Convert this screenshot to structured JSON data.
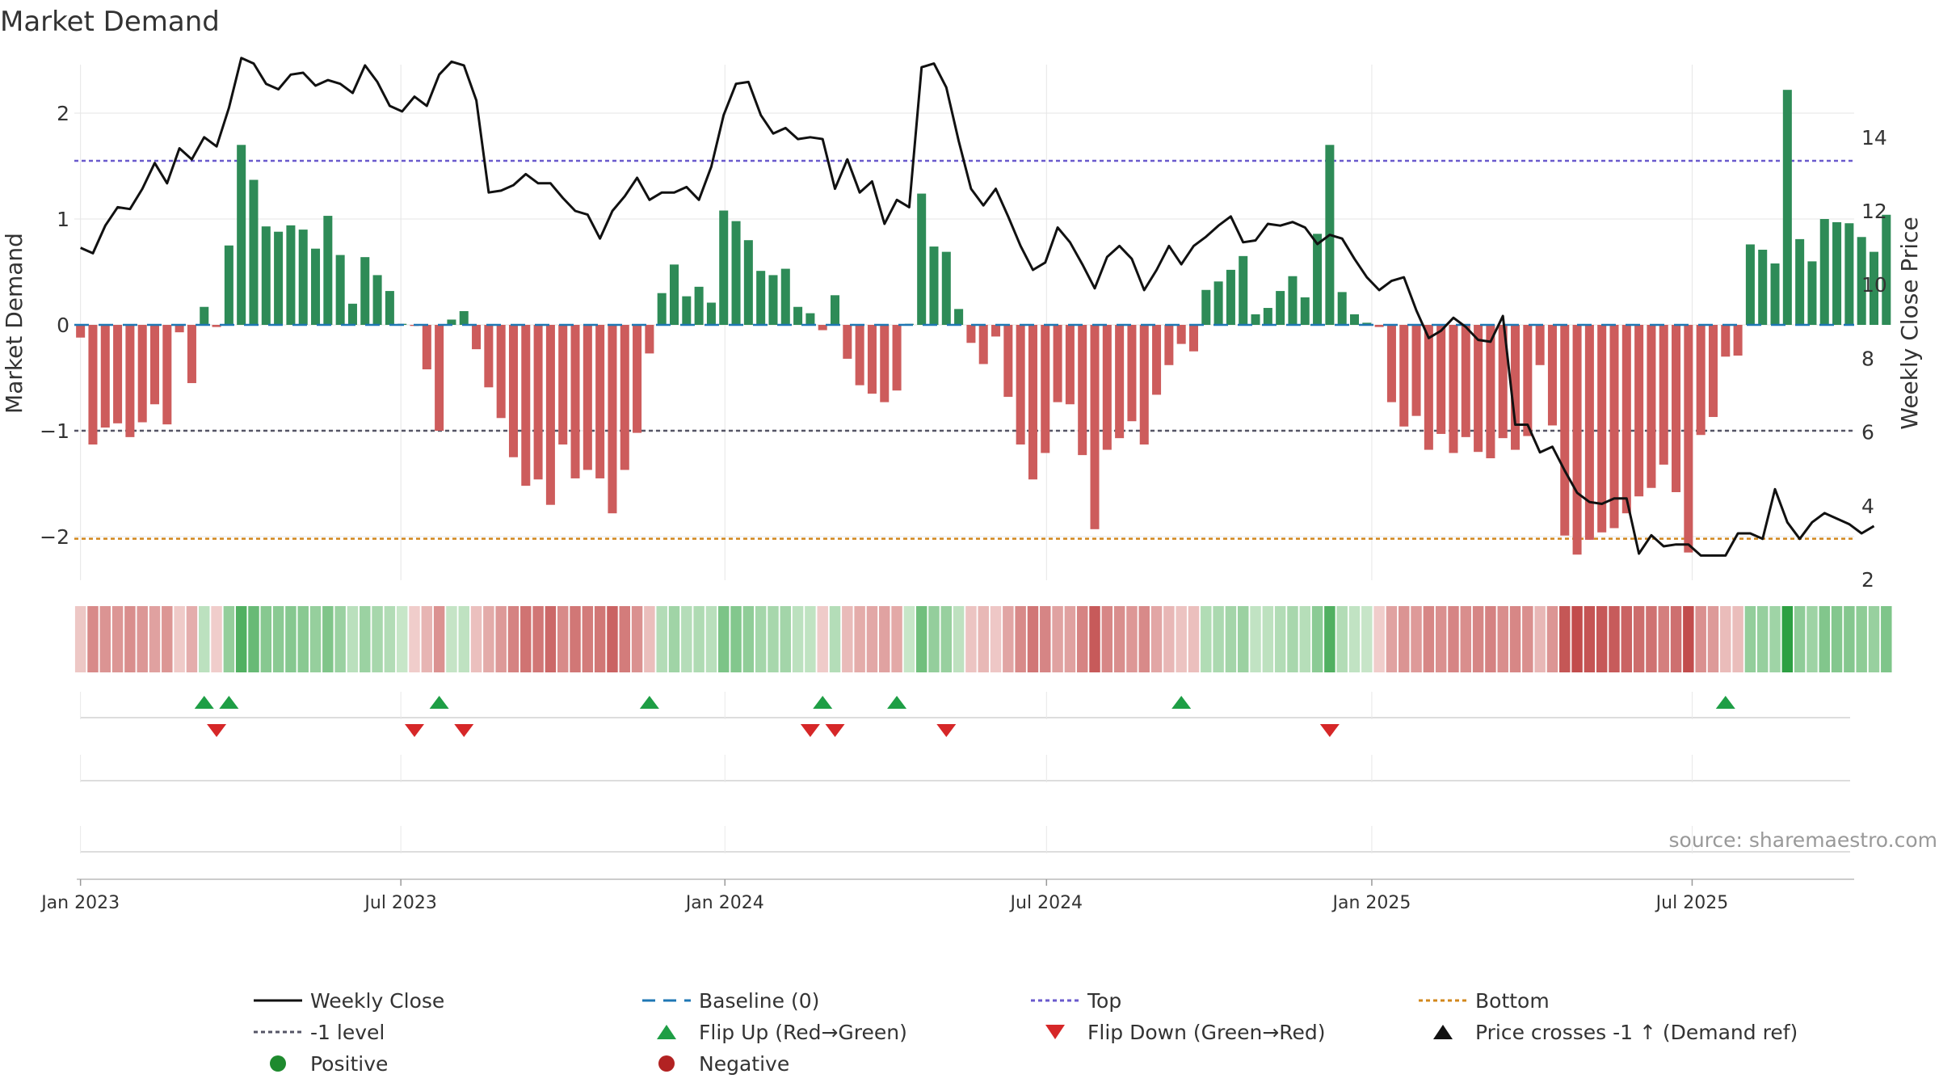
{
  "colors": {
    "positive": "#2e8b57",
    "negative": "#cd5c5c",
    "close": "#111111",
    "baseline": "#1f77b4",
    "top": "#6a5acd",
    "minus1": "#555566",
    "bottom": "#d2871c",
    "flip_up": "#1e9e45",
    "flip_down": "#d62728",
    "grid": "#e6e6e6",
    "source": "#999999"
  },
  "chart_data": {
    "type": "bar",
    "title": "Market Demand",
    "ylabel": "Market Demand",
    "ylabel_right": "Weekly Close Price",
    "ylim": [
      -2.4,
      2.45
    ],
    "ylim_right": [
      2,
      15.6
    ],
    "yticks": [
      2,
      1,
      0,
      -1,
      -2
    ],
    "ytick_labels": [
      "2",
      "1",
      "0",
      "−1",
      "−2"
    ],
    "yticks_right": [
      2,
      4,
      6,
      8,
      10,
      12,
      14
    ],
    "ytick_labels_right": [
      "2",
      "4",
      "6",
      "8",
      "10",
      "12",
      "14"
    ],
    "x_start_week": -0.5,
    "x_end_week": 143.4,
    "x_ticks": [
      {
        "label": "Jan 2023",
        "week": 0
      },
      {
        "label": "Jul 2023",
        "week": 25.9
      },
      {
        "label": "Jan 2024",
        "week": 52.1
      },
      {
        "label": "Jul 2024",
        "week": 78.1
      },
      {
        "label": "Jan 2025",
        "week": 104.4
      },
      {
        "label": "Jul 2025",
        "week": 130.3
      }
    ],
    "reference_lines": {
      "baseline": 0,
      "top": 1.55,
      "minus1": -1,
      "bottom": -2.02
    },
    "demand": [
      -0.12,
      -1.13,
      -0.97,
      -0.93,
      -1.06,
      -0.92,
      -0.75,
      -0.94,
      -0.07,
      -0.55,
      0.17,
      -0.02,
      0.75,
      1.7,
      1.37,
      0.93,
      0.88,
      0.94,
      0.9,
      0.72,
      1.03,
      0.66,
      0.2,
      0.64,
      0.47,
      0.32,
      0.01,
      -0.01,
      -0.42,
      -1.0,
      0.05,
      0.13,
      -0.23,
      -0.59,
      -0.88,
      -1.25,
      -1.52,
      -1.46,
      -1.7,
      -1.13,
      -1.45,
      -1.37,
      -1.45,
      -1.78,
      -1.37,
      -1.02,
      -0.27,
      0.3,
      0.57,
      0.27,
      0.36,
      0.21,
      1.08,
      0.98,
      0.8,
      0.51,
      0.47,
      0.53,
      0.17,
      0.11,
      -0.05,
      0.28,
      -0.32,
      -0.57,
      -0.65,
      -0.73,
      -0.62,
      0.01,
      1.24,
      0.74,
      0.69,
      0.15,
      -0.17,
      -0.37,
      -0.11,
      -0.68,
      -1.13,
      -1.46,
      -1.21,
      -0.73,
      -0.75,
      -1.23,
      -1.93,
      -1.18,
      -1.07,
      -0.91,
      -1.13,
      -0.66,
      -0.38,
      -0.18,
      -0.25,
      0.33,
      0.41,
      0.52,
      0.65,
      0.1,
      0.16,
      0.32,
      0.46,
      0.26,
      0.86,
      1.7,
      0.31,
      0.1,
      0.02,
      -0.02,
      -0.73,
      -0.96,
      -0.86,
      -1.18,
      -1.03,
      -1.21,
      -1.06,
      -1.2,
      -1.26,
      -1.07,
      -1.18,
      -1.05,
      -0.38,
      -0.95,
      -1.99,
      -2.17,
      -2.03,
      -1.96,
      -1.92,
      -1.78,
      -1.62,
      -1.54,
      -1.32,
      -1.58,
      -2.15,
      -1.04,
      -0.87,
      -0.3,
      -0.29,
      0.76,
      0.71,
      0.58,
      2.22,
      0.81,
      0.6,
      1.0,
      0.97,
      0.96,
      0.83,
      0.69,
      1.04
    ],
    "weekly_close": [
      11.0,
      10.85,
      11.6,
      12.1,
      12.05,
      12.6,
      13.3,
      12.75,
      13.7,
      13.4,
      14.0,
      13.75,
      14.8,
      16.15,
      16.0,
      15.45,
      15.3,
      15.7,
      15.75,
      15.4,
      15.55,
      15.45,
      15.2,
      15.95,
      15.5,
      14.85,
      14.7,
      15.1,
      14.85,
      15.7,
      16.05,
      15.95,
      15.0,
      12.5,
      12.55,
      12.7,
      13.0,
      12.75,
      12.75,
      12.35,
      12.0,
      11.9,
      11.25,
      12.0,
      12.4,
      12.9,
      12.3,
      12.5,
      12.5,
      12.65,
      12.3,
      13.2,
      14.6,
      15.45,
      15.5,
      14.6,
      14.1,
      14.25,
      13.95,
      14.0,
      13.95,
      12.6,
      13.4,
      12.5,
      12.8,
      11.65,
      12.3,
      12.1,
      15.9,
      16.0,
      15.35,
      13.9,
      12.6,
      12.15,
      12.6,
      11.85,
      11.05,
      10.4,
      10.6,
      11.55,
      11.15,
      10.55,
      9.9,
      10.75,
      11.05,
      10.7,
      9.85,
      10.4,
      11.05,
      10.55,
      11.05,
      11.3,
      11.6,
      11.85,
      11.15,
      11.2,
      11.65,
      11.6,
      11.7,
      11.55,
      11.1,
      11.35,
      11.25,
      10.7,
      10.2,
      9.85,
      10.1,
      10.2,
      9.3,
      8.55,
      8.75,
      9.1,
      8.85,
      8.5,
      8.45,
      9.15,
      6.2,
      6.2,
      5.45,
      5.6,
      4.95,
      4.35,
      4.1,
      4.05,
      4.2,
      4.2,
      2.7,
      3.2,
      2.9,
      2.95,
      2.95,
      2.65,
      2.65,
      2.65,
      3.25,
      3.25,
      3.1,
      4.45,
      3.55,
      3.1,
      3.55,
      3.8,
      3.65,
      3.5,
      3.25,
      3.45
    ],
    "flips_up": [
      10,
      12,
      29,
      46,
      60,
      66,
      89,
      133
    ],
    "flips_down": [
      11,
      27,
      31,
      59,
      61,
      70,
      101
    ],
    "source": "source: sharemaestro.com",
    "legend": [
      {
        "label": "Weekly Close",
        "symbol": "line-solid",
        "color": "#111111"
      },
      {
        "label": "Baseline (0)",
        "symbol": "line-dash",
        "color": "#1f77b4"
      },
      {
        "label": "Top",
        "symbol": "line-dot",
        "color": "#6a5acd"
      },
      {
        "label": "Bottom",
        "symbol": "line-dot",
        "color": "#d2871c"
      },
      {
        "label": "-1 level",
        "symbol": "line-dot",
        "color": "#555566"
      },
      {
        "label": "Flip Up (Red→Green)",
        "symbol": "triangle-up",
        "color": "#1e9e45"
      },
      {
        "label": "Flip Down (Green→Red)",
        "symbol": "triangle-down",
        "color": "#d62728"
      },
      {
        "label": "Price crosses -1 ↑ (Demand ref)",
        "symbol": "triangle-up",
        "color": "#111111"
      },
      {
        "label": "Positive",
        "symbol": "dot",
        "color": "#1e8a2e"
      },
      {
        "label": "Negative",
        "symbol": "dot",
        "color": "#b22222"
      }
    ]
  }
}
